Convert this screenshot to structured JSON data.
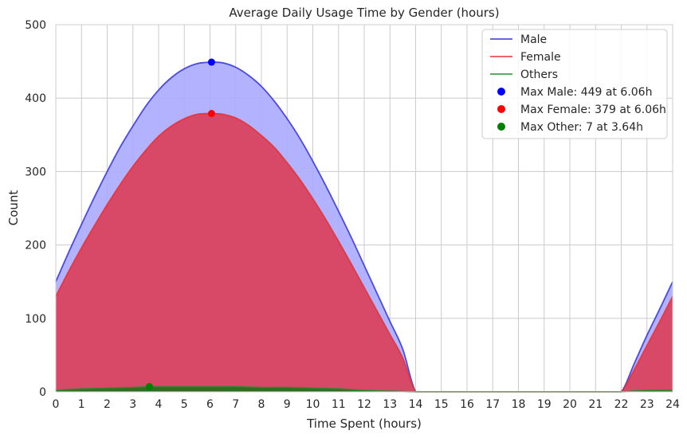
{
  "chart_data": {
    "type": "area",
    "title": "Average Daily Usage Time by Gender (hours)",
    "xlabel": "Time Spent (hours)",
    "ylabel": "Count",
    "xlim": [
      0,
      24
    ],
    "ylim": [
      0,
      500
    ],
    "xticks": [
      0,
      1,
      2,
      3,
      4,
      5,
      6,
      7,
      8,
      9,
      10,
      11,
      12,
      13,
      14,
      15,
      16,
      17,
      18,
      19,
      20,
      21,
      22,
      23,
      24
    ],
    "yticks": [
      0,
      100,
      200,
      300,
      400,
      500
    ],
    "grid": true,
    "legend_position": "top-right",
    "series": [
      {
        "name": "Male",
        "color": "#3333dd",
        "fill": "#aaaaff",
        "x": [
          0,
          0.5,
          1,
          1.5,
          2,
          2.5,
          3,
          3.5,
          4,
          4.5,
          5,
          5.5,
          6,
          6.06,
          6.5,
          7,
          7.5,
          8,
          8.5,
          9,
          9.5,
          10,
          10.5,
          11,
          11.5,
          12,
          12.5,
          13,
          13.5,
          14,
          14.5,
          15,
          16,
          17,
          18,
          19,
          20,
          21,
          21.5,
          22,
          22.5,
          23,
          23.5,
          24
        ],
        "values": [
          150,
          190,
          228,
          265,
          300,
          333,
          362,
          389,
          411,
          428,
          440,
          447,
          449,
          449,
          448,
          442,
          431,
          416,
          396,
          372,
          345,
          314,
          281,
          246,
          210,
          172,
          134,
          96,
          58,
          0,
          0,
          0,
          0,
          0,
          0,
          0,
          0,
          0,
          0,
          0,
          38,
          77,
          113,
          150
        ]
      },
      {
        "name": "Female",
        "color": "#e83030",
        "fill": "#dc3d58",
        "x": [
          0,
          0.5,
          1,
          1.5,
          2,
          2.5,
          3,
          3.5,
          4,
          4.5,
          5,
          5.5,
          6,
          6.06,
          6.5,
          7,
          7.5,
          8,
          8.5,
          9,
          9.5,
          10,
          10.5,
          11,
          11.5,
          12,
          12.5,
          13,
          13.5,
          14,
          14.5,
          15,
          16,
          17,
          18,
          19,
          20,
          21,
          21.5,
          22,
          22.5,
          23,
          23.5,
          24
        ],
        "values": [
          130,
          164,
          196,
          226,
          255,
          282,
          307,
          329,
          348,
          362,
          372,
          378,
          379,
          379,
          378,
          373,
          363,
          349,
          333,
          312,
          289,
          263,
          235,
          205,
          174,
          142,
          110,
          78,
          46,
          0,
          0,
          0,
          0,
          0,
          0,
          0,
          0,
          0,
          0,
          0,
          30,
          63,
          96,
          130
        ]
      },
      {
        "name": "Others",
        "color": "#2a8a2a",
        "fill": "#2e6e1e",
        "x": [
          0,
          1,
          2,
          3,
          3.64,
          4,
          5,
          6,
          7,
          8,
          9,
          10,
          11,
          12,
          13,
          14,
          15,
          16,
          17,
          18,
          19,
          20,
          21,
          22,
          23,
          24
        ],
        "values": [
          2,
          4,
          5,
          6,
          7,
          7,
          7,
          7,
          7,
          6,
          6,
          5,
          4,
          2,
          1,
          0,
          0,
          0,
          0,
          0,
          0,
          0,
          0,
          0,
          2,
          2
        ]
      }
    ],
    "markers": [
      {
        "label": "Max Male: 449 at 6.06h",
        "x": 6.06,
        "y": 449,
        "color": "#0000ff"
      },
      {
        "label": "Max Female: 379 at 6.06h",
        "x": 6.06,
        "y": 379,
        "color": "#ff0000"
      },
      {
        "label": "Max Other: 7 at 3.64h",
        "x": 3.64,
        "y": 7,
        "color": "#008000"
      }
    ]
  }
}
